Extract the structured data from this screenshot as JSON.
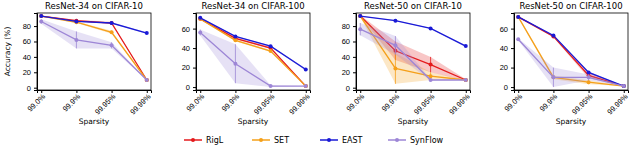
{
  "chart_data": [
    {
      "type": "line",
      "title": "ResNet-34 on CIFAR-10",
      "x_label": "Sparsity",
      "y_label": "Accuracy (%)",
      "categories": [
        "99.0%",
        "99.9%",
        "99.95%",
        "99.99%"
      ],
      "ylim": [
        -3,
        97
      ],
      "yticks": [
        0,
        20,
        40,
        60,
        80
      ],
      "grid": false,
      "legend": "bottom",
      "series": [
        {
          "name": "RigL",
          "color": "#e41a1c",
          "marker": "circle",
          "values": [
            93,
            87,
            84,
            10
          ],
          "errors": [
            0.5,
            1,
            1.5,
            0
          ]
        },
        {
          "name": "SET",
          "color": "#f5a01a",
          "marker": "circle",
          "values": [
            93,
            85,
            72,
            10
          ],
          "errors": [
            0.5,
            1,
            2,
            0
          ]
        },
        {
          "name": "EAST",
          "color": "#1a1ad6",
          "marker": "circle",
          "values": [
            93,
            86,
            84,
            71
          ],
          "errors": [
            0.3,
            0.5,
            0.5,
            1
          ]
        },
        {
          "name": "SynFlow",
          "color": "#9d86d6",
          "marker": "circle",
          "values": [
            86,
            62,
            55,
            10
          ],
          "errors": [
            3,
            11,
            4,
            0
          ]
        }
      ]
    },
    {
      "type": "line",
      "title": "ResNet-34 on CIFAR-100",
      "x_label": "Sparsity",
      "categories": [
        "99.0%",
        "99.9%",
        "99.95%",
        "99.99%"
      ],
      "ylim": [
        -3,
        76
      ],
      "yticks": [
        0,
        20,
        40,
        60
      ],
      "grid": false,
      "series": [
        {
          "name": "RigL",
          "color": "#e41a1c",
          "marker": "circle",
          "values": [
            70,
            50,
            40,
            1
          ],
          "errors": [
            0.5,
            1,
            1,
            0
          ]
        },
        {
          "name": "SET",
          "color": "#f5a01a",
          "marker": "circle",
          "values": [
            70,
            48,
            37,
            1
          ],
          "errors": [
            0.5,
            1,
            1,
            0
          ]
        },
        {
          "name": "EAST",
          "color": "#1a1ad6",
          "marker": "circle",
          "values": [
            71,
            52,
            42,
            18
          ],
          "errors": [
            0.3,
            0.5,
            0.5,
            1
          ]
        },
        {
          "name": "SynFlow",
          "color": "#9d86d6",
          "marker": "circle",
          "values": [
            56,
            24,
            1,
            1
          ],
          "errors": [
            3,
            20,
            1,
            0
          ]
        }
      ]
    },
    {
      "type": "line",
      "title": "ResNet-50 on CIFAR-10",
      "x_label": "Sparsity",
      "categories": [
        "99.0%",
        "99.9%",
        "99.95%",
        "99.99%"
      ],
      "ylim": [
        -3,
        97
      ],
      "yticks": [
        0,
        20,
        40,
        60,
        80
      ],
      "grid": false,
      "series": [
        {
          "name": "RigL",
          "color": "#e41a1c",
          "marker": "circle",
          "values": [
            93,
            48,
            30,
            10
          ],
          "errors": [
            1,
            12,
            10,
            1
          ]
        },
        {
          "name": "SET",
          "color": "#f5a01a",
          "marker": "circle",
          "values": [
            93,
            25,
            15,
            10
          ],
          "errors": [
            1,
            20,
            5,
            0
          ]
        },
        {
          "name": "EAST",
          "color": "#1a1ad6",
          "marker": "circle",
          "values": [
            93,
            87,
            77,
            54
          ],
          "errors": [
            0.3,
            0.5,
            0.5,
            1
          ]
        },
        {
          "name": "SynFlow",
          "color": "#9d86d6",
          "marker": "circle",
          "values": [
            76,
            55,
            10,
            10
          ],
          "errors": [
            8,
            12,
            1,
            0
          ]
        }
      ]
    },
    {
      "type": "line",
      "title": "ResNet-50 on CIFAR-100",
      "x_label": "Sparsity",
      "categories": [
        "99.0%",
        "99.9%",
        "99.95%",
        "99.99%"
      ],
      "ylim": [
        -3,
        76
      ],
      "yticks": [
        0,
        20,
        40,
        60
      ],
      "grid": false,
      "series": [
        {
          "name": "RigL",
          "color": "#e41a1c",
          "marker": "circle",
          "values": [
            72,
            52,
            12,
            1
          ],
          "errors": [
            1,
            1,
            3,
            0
          ]
        },
        {
          "name": "SET",
          "color": "#f5a01a",
          "marker": "circle",
          "values": [
            72,
            10,
            5,
            1
          ],
          "errors": [
            1,
            2,
            2,
            0
          ]
        },
        {
          "name": "EAST",
          "color": "#1a1ad6",
          "marker": "circle",
          "values": [
            72,
            53,
            15,
            1
          ],
          "errors": [
            0.3,
            0.5,
            1,
            0
          ]
        },
        {
          "name": "SynFlow",
          "color": "#9d86d6",
          "marker": "circle",
          "values": [
            49,
            10,
            10,
            1
          ],
          "errors": [
            1,
            10,
            3,
            0
          ]
        }
      ]
    }
  ]
}
